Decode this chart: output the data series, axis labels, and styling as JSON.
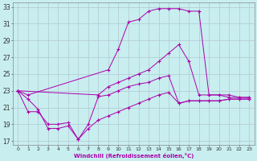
{
  "xlabel": "Windchill (Refroidissement éolien,°C)",
  "background_color": "#c8eef0",
  "grid_color": "#b0c8d0",
  "line_color": "#aa00aa",
  "xlim": [
    -0.5,
    23.5
  ],
  "ylim": [
    16.5,
    33.5
  ],
  "yticks": [
    17,
    19,
    21,
    23,
    25,
    27,
    29,
    31,
    33
  ],
  "xticks": [
    0,
    1,
    2,
    3,
    4,
    5,
    6,
    7,
    8,
    9,
    10,
    11,
    12,
    13,
    14,
    15,
    16,
    17,
    18,
    19,
    20,
    21,
    22,
    23
  ],
  "series": [
    {
      "x": [
        0,
        1,
        9,
        10,
        11,
        12,
        13,
        14,
        15,
        16,
        17,
        18,
        19,
        20,
        21,
        22,
        23
      ],
      "y": [
        23,
        22.5,
        25.5,
        28.0,
        31.2,
        31.5,
        32.5,
        32.8,
        32.8,
        32.8,
        32.5,
        32.5,
        22.5,
        22.5,
        22.5,
        22.2,
        22.2
      ]
    },
    {
      "x": [
        0,
        8,
        9,
        10,
        11,
        12,
        13,
        14,
        15,
        16,
        17,
        18,
        19,
        20,
        21,
        22,
        23
      ],
      "y": [
        23,
        22.5,
        23.5,
        24.0,
        24.5,
        25.0,
        25.5,
        26.5,
        27.5,
        28.5,
        26.5,
        22.5,
        22.5,
        22.5,
        22.2,
        22.2,
        22.2
      ]
    },
    {
      "x": [
        0,
        1,
        2,
        3,
        4,
        5,
        6,
        7,
        8,
        9,
        10,
        11,
        12,
        13,
        14,
        15,
        16,
        17,
        18,
        19,
        20,
        21,
        22,
        23
      ],
      "y": [
        23,
        22.0,
        20.8,
        18.5,
        18.5,
        18.8,
        17.2,
        19.0,
        22.3,
        22.5,
        23.0,
        23.5,
        23.8,
        24.0,
        24.5,
        24.8,
        21.5,
        21.8,
        21.8,
        21.8,
        21.8,
        22.0,
        22.0,
        22.0
      ]
    },
    {
      "x": [
        0,
        1,
        2,
        3,
        4,
        5,
        6,
        7,
        8,
        9,
        10,
        11,
        12,
        13,
        14,
        15,
        16,
        17,
        18,
        19,
        20,
        21,
        22,
        23
      ],
      "y": [
        23,
        20.5,
        20.5,
        19.0,
        19.0,
        19.2,
        17.2,
        18.5,
        19.5,
        20.0,
        20.5,
        21.0,
        21.5,
        22.0,
        22.5,
        22.8,
        21.5,
        21.8,
        21.8,
        21.8,
        21.8,
        22.0,
        22.0,
        22.0
      ]
    }
  ]
}
